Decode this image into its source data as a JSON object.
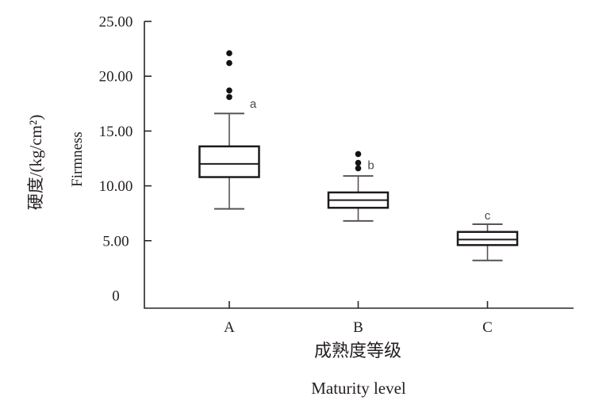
{
  "chart_data": {
    "type": "boxplot",
    "title": "",
    "categories": [
      "A",
      "B",
      "C"
    ],
    "xlabel_zh": "成熟度等级",
    "xlabel_en": "Maturity level",
    "ylabel_zh": "硬度/(kg/cm²)",
    "ylabel_en": "Firmness",
    "ylim": [
      0,
      25
    ],
    "grid": false,
    "legend": "none",
    "yticks": [
      {
        "value": 0,
        "label": "0"
      },
      {
        "value": 5,
        "label": "5.00"
      },
      {
        "value": 10,
        "label": "10.00"
      },
      {
        "value": 15,
        "label": "15.00"
      },
      {
        "value": 20,
        "label": "20.00"
      },
      {
        "value": 25,
        "label": "25.00"
      }
    ],
    "series": [
      {
        "category": "A",
        "whisker_low": 7.9,
        "q1": 10.8,
        "median": 12.0,
        "q3": 13.6,
        "whisker_high": 16.6,
        "outliers": [
          18.1,
          18.7,
          21.2,
          22.1
        ],
        "sig_label": "a",
        "sig_y": 17.5
      },
      {
        "category": "B",
        "whisker_low": 6.8,
        "q1": 8.0,
        "median": 8.7,
        "q3": 9.4,
        "whisker_high": 10.9,
        "outliers": [
          11.6,
          12.1,
          12.9
        ],
        "sig_label": "b",
        "sig_y": 11.9
      },
      {
        "category": "C",
        "whisker_low": 3.2,
        "q1": 4.6,
        "median": 5.1,
        "q3": 5.8,
        "whisker_high": 6.5,
        "outliers": [],
        "sig_label": "c",
        "sig_y": 7.3
      }
    ]
  },
  "colors": {
    "background": "#ffffff",
    "axis": "#2b2626",
    "box_border": "#1f1a1a",
    "box_fill": "#ffffff",
    "whisker": "#595454",
    "outlier": "#141111",
    "text": "#262020",
    "sig_letter": "#4d4848"
  }
}
